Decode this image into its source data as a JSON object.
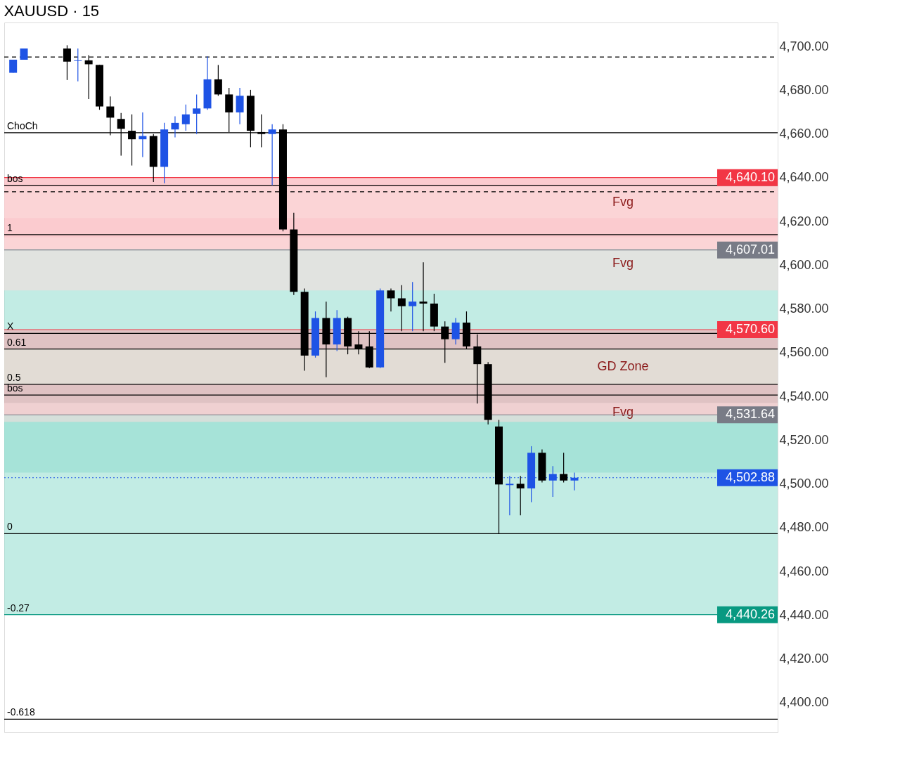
{
  "chart_data": {
    "type": "candlestick",
    "title": "XAUUSD · 15",
    "categories": [
      null,
      null,
      null,
      null,
      null,
      null,
      null,
      null,
      null,
      null,
      null,
      null,
      null,
      null,
      null,
      null,
      null,
      null,
      null,
      null,
      null,
      null,
      null,
      null,
      null,
      null,
      null,
      null,
      null,
      null,
      null,
      null,
      null,
      null,
      null,
      null,
      null,
      null,
      null,
      null,
      null,
      null,
      null,
      null,
      null,
      null,
      null,
      null,
      null,
      null,
      null,
      null,
      null,
      null,
      null,
      null,
      null,
      null,
      null,
      null,
      null,
      null,
      null,
      null,
      null,
      null,
      null,
      null,
      null,
      null,
      null
    ],
    "ohlc": [
      [
        4688.0,
        4694.0,
        4688.0,
        4694.0
      ],
      [
        4694.0,
        4699.1,
        4694.0,
        4699.1
      ],
      null,
      null,
      null,
      [
        4699.1,
        4700.6,
        4684.7,
        4693.1
      ],
      [
        4693.4,
        4699.1,
        4684.1,
        4693.7
      ],
      [
        4693.7,
        4696.1,
        4676.0,
        4691.9
      ],
      [
        4691.6,
        4691.6,
        4671.1,
        4672.6
      ],
      [
        4672.6,
        4677.2,
        4659.4,
        4667.5
      ],
      [
        4666.9,
        4669.6,
        4650.1,
        4662.4
      ],
      [
        4661.5,
        4669.0,
        4645.6,
        4657.6
      ],
      [
        4657.6,
        4669.9,
        4649.5,
        4659.1
      ],
      [
        4659.1,
        4660.0,
        4638.1,
        4645.0
      ],
      [
        4645.0,
        4665.1,
        4637.5,
        4662.1
      ],
      [
        4662.1,
        4668.1,
        4658.5,
        4665.1
      ],
      [
        4664.5,
        4673.5,
        4661.5,
        4669.0
      ],
      [
        4669.3,
        4678.1,
        4660.0,
        4671.7
      ],
      [
        4671.7,
        4695.5,
        4671.1,
        4685.0
      ],
      [
        4685.0,
        4691.6,
        4677.5,
        4678.1
      ],
      [
        4678.1,
        4681.1,
        4660.9,
        4669.9
      ],
      [
        4669.9,
        4681.1,
        4664.5,
        4677.5
      ],
      [
        4677.5,
        4680.2,
        4654.0,
        4661.5
      ],
      [
        4660.9,
        4669.0,
        4654.0,
        4660.0
      ],
      [
        4660.0,
        4664.5,
        4636.6,
        4662.1
      ],
      [
        4662.1,
        4664.5,
        4615.5,
        4616.4
      ],
      [
        4616.4,
        4624.0,
        4586.4,
        4587.9
      ],
      [
        4587.9,
        4589.4,
        4551.8,
        4558.7
      ],
      [
        4558.7,
        4578.9,
        4557.8,
        4575.9
      ],
      [
        4575.9,
        4583.4,
        4548.8,
        4563.8
      ],
      [
        4563.8,
        4579.5,
        4560.8,
        4575.9
      ],
      [
        4575.9,
        4576.5,
        4559.3,
        4562.9
      ],
      [
        4563.8,
        4569.9,
        4559.3,
        4561.7
      ],
      [
        4562.9,
        4569.9,
        4553.0,
        4553.3
      ],
      [
        4553.3,
        4589.4,
        4553.0,
        4588.5
      ],
      [
        4588.5,
        4589.4,
        4578.9,
        4584.9
      ],
      [
        4584.9,
        4590.9,
        4569.9,
        4581.3
      ],
      [
        4581.3,
        4592.4,
        4569.9,
        4583.4
      ],
      [
        4583.4,
        4601.4,
        4569.9,
        4582.5
      ],
      [
        4582.5,
        4587.0,
        4569.9,
        4572.0
      ],
      [
        4572.0,
        4574.4,
        4555.4,
        4566.2
      ],
      [
        4566.2,
        4575.9,
        4563.8,
        4573.8
      ],
      [
        4573.8,
        4578.9,
        4561.7,
        4562.9
      ],
      [
        4562.9,
        4568.4,
        4536.8,
        4554.8
      ],
      [
        4554.8,
        4555.7,
        4527.2,
        4529.3
      ],
      [
        4526.3,
        4529.3,
        4477.3,
        4499.8
      ],
      [
        4499.5,
        4503.7,
        4485.7,
        4500.1
      ],
      [
        4500.1,
        4503.7,
        4485.7,
        4498.0
      ],
      [
        4498.0,
        4517.3,
        4491.7,
        4514.3
      ],
      [
        4514.3,
        4515.8,
        4500.7,
        4501.6
      ],
      [
        4501.6,
        4508.2,
        4494.1,
        4504.6
      ],
      [
        4504.6,
        4514.3,
        4500.7,
        4501.6
      ],
      [
        4501.6,
        4505.2,
        4497.1,
        4502.9
      ],
      null,
      null,
      null,
      null,
      null,
      null,
      null,
      null,
      null,
      null,
      null,
      null,
      null,
      null,
      null,
      null,
      null,
      null
    ],
    "colors": [
      "#1e53e5",
      "#1e53e5",
      null,
      null,
      null,
      "#000000",
      "#1e53e5",
      "#000000",
      "#000000",
      "#000000",
      "#000000",
      "#000000",
      "#1e53e5",
      "#000000",
      "#1e53e5",
      "#1e53e5",
      "#1e53e5",
      "#1e53e5",
      "#1e53e5",
      "#000000",
      "#000000",
      "#1e53e5",
      "#000000",
      "#000000",
      "#1e53e5",
      "#000000",
      "#000000",
      "#000000",
      "#1e53e5",
      "#000000",
      "#1e53e5",
      "#000000",
      "#000000",
      "#000000",
      "#1e53e5",
      "#000000",
      "#000000",
      "#1e53e5",
      "#000000",
      "#000000",
      "#000000",
      "#1e53e5",
      "#000000",
      "#000000",
      "#000000",
      "#000000",
      "#1e53e5",
      "#000000",
      "#1e53e5",
      "#000000",
      "#1e53e5",
      "#000000",
      "#1e53e5",
      null,
      null,
      null,
      null,
      null,
      null,
      null,
      null,
      null,
      null,
      null,
      null,
      null,
      null,
      null,
      null,
      null,
      null
    ],
    "ylim": [
      4386.5,
      4711
    ],
    "yticks": [
      {
        "value": 4400,
        "label": "4,400.00"
      },
      {
        "value": 4420,
        "label": "4,420.00"
      },
      {
        "value": 4440,
        "label": "4,440.00"
      },
      {
        "value": 4460,
        "label": "4,460.00"
      },
      {
        "value": 4480,
        "label": "4,480.00"
      },
      {
        "value": 4500,
        "label": "4,500.00"
      },
      {
        "value": 4520,
        "label": "4,520.00"
      },
      {
        "value": 4540,
        "label": "4,540.00"
      },
      {
        "value": 4560,
        "label": "4,560.00"
      },
      {
        "value": 4580,
        "label": "4,580.00"
      },
      {
        "value": 4600,
        "label": "4,600.00"
      },
      {
        "value": 4620,
        "label": "4,620.00"
      },
      {
        "value": 4640,
        "label": "4,640.00"
      },
      {
        "value": 4660,
        "label": "4,660.00"
      },
      {
        "value": 4680,
        "label": "4,680.00"
      },
      {
        "value": 4700,
        "label": "4,700.00"
      }
    ],
    "tick_labels": "y",
    "bands": [
      {
        "axis": "y",
        "from": 4607.4,
        "to": 4640.1,
        "color": "#f7a1a8"
      },
      {
        "axis": "y",
        "from": 4505.2,
        "to": 4607.4,
        "color": "#8fdccd"
      },
      {
        "axis": "y",
        "from": 4531.64,
        "to": 4570.6,
        "color": "#f7a1a8"
      },
      {
        "axis": "y",
        "from": 4440.26,
        "to": 4531.64,
        "color": "#8fdccd"
      },
      {
        "axis": "y",
        "from": 4621.6,
        "to": 4636.0,
        "label": "Fvg",
        "color": "#fcdcdc"
      },
      {
        "axis": "y",
        "from": 4588.5,
        "to": 4612.8,
        "label": "Fvg",
        "color": "#fcdcdc"
      },
      {
        "axis": "y",
        "from": 4528.4,
        "to": 4537.1,
        "label": "Fvg",
        "color": "#fcdcdc"
      },
      {
        "axis": "y",
        "from": 4545.6,
        "to": 4561.7,
        "label": "GD Zone",
        "color": "#e3f2e3"
      }
    ],
    "ref_lines": [
      {
        "axis": "y",
        "value": 4695.2,
        "line_style": "dashed",
        "color": "#000000"
      },
      {
        "axis": "y",
        "value": 4660.6,
        "line_style": "solid",
        "color": "#000000"
      },
      {
        "axis": "y",
        "value": 4636.6,
        "line_style": "solid",
        "color": "#000000"
      },
      {
        "axis": "y",
        "value": 4633.6,
        "line_style": "dashed",
        "color": "#000000"
      },
      {
        "axis": "y",
        "value": 4614.0,
        "line_style": "solid",
        "color": "#000000"
      },
      {
        "axis": "y",
        "value": 4568.9,
        "line_style": "solid",
        "color": "#000000"
      },
      {
        "axis": "y",
        "value": 4561.7,
        "line_style": "solid",
        "color": "#000000"
      },
      {
        "axis": "y",
        "value": 4545.6,
        "line_style": "solid",
        "color": "#000000"
      },
      {
        "axis": "y",
        "value": 4540.7,
        "line_style": "solid",
        "color": "#000000"
      },
      {
        "axis": "y",
        "value": 4477.3,
        "line_style": "solid",
        "color": "#000000"
      },
      {
        "axis": "y",
        "value": 4392.5,
        "line_style": "solid",
        "color": "#000000"
      },
      {
        "axis": "y",
        "value": 4640.1,
        "label": "4,640.10",
        "line_style": "solid",
        "color": "#f23645"
      },
      {
        "axis": "y",
        "value": 4607.01,
        "label": "4,607.01",
        "line_style": "solid",
        "color": "#787b86"
      },
      {
        "axis": "y",
        "value": 4570.6,
        "label": "4,570.60",
        "line_style": "solid",
        "color": "#f23645"
      },
      {
        "axis": "y",
        "value": 4531.64,
        "label": "4,531.64",
        "line_style": "solid",
        "color": "#787b86"
      },
      {
        "axis": "y",
        "value": 4502.88,
        "label": "4,502.88",
        "line_style": "dotted",
        "color": "#1e53e5"
      },
      {
        "axis": "y",
        "value": 4440.26,
        "label": "4,440.26",
        "line_style": "solid",
        "color": "#089981"
      }
    ],
    "annotations": [
      {
        "text": "ChoCh",
        "y": 4660.6
      },
      {
        "text": "bos",
        "y": 4636.6
      },
      {
        "text": "1",
        "y": 4614.0
      },
      {
        "text": "X",
        "y": 4568.9
      },
      {
        "text": "0.61",
        "y": 4561.7
      },
      {
        "text": "0.5",
        "y": 4545.6
      },
      {
        "text": "bos",
        "y": 4540.7
      },
      {
        "text": "0",
        "y": 4477.3
      },
      {
        "text": "-0.27",
        "y": 4440.26
      },
      {
        "text": "-0.618",
        "y": 4392.5
      }
    ]
  }
}
